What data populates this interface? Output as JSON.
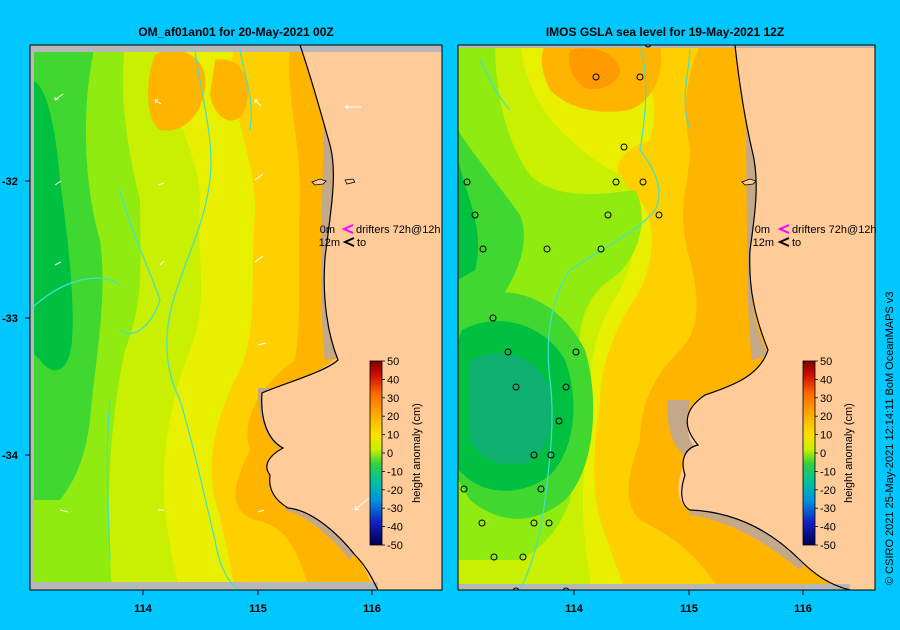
{
  "panels": [
    {
      "title": "OM_af01an01  for 20-May-2021 00Z",
      "drifter_legend": {
        "line1_depth": "0m",
        "line1_text": "drifters 72h@12h",
        "line2_depth": "12m",
        "line2_text": "to"
      },
      "colorbar_label": "height anomaly (cm)"
    },
    {
      "title": "IMOS GSLA sea level  for 19-May-2021 12Z",
      "drifter_legend": {
        "line1_depth": "0m",
        "line1_text": "drifters 72h@12h",
        "line2_depth": "12m",
        "line2_text": "to"
      },
      "colorbar_label": "height anomaly (cm)"
    }
  ],
  "x_ticks": [
    "114",
    "115",
    "116"
  ],
  "y_ticks": [
    "-32",
    "-33",
    "-34"
  ],
  "colorbar_ticks": [
    "50",
    "40",
    "30",
    "20",
    "10",
    "0",
    "-10",
    "-20",
    "-30",
    "-40",
    "-50"
  ],
  "credit": "© CSIRO 2021    25-May-2021 12:14:11 BoM OceanMAPS v3",
  "colors": {
    "background": "#00c8ff",
    "land": "#ffcc99",
    "shelf": "#c4a88a",
    "current_line": "#40e0d0",
    "legend_arrow_0m": "#ff00ff",
    "legend_arrow_12m": "#000000"
  },
  "colorbar_colors": [
    "#ff7a00",
    "#ff9a00",
    "#ffb400",
    "#ffd000",
    "#e8f000",
    "#c8f000",
    "#90ec10",
    "#40d830",
    "#00c040",
    "#10b070",
    "#40d0a0"
  ]
}
